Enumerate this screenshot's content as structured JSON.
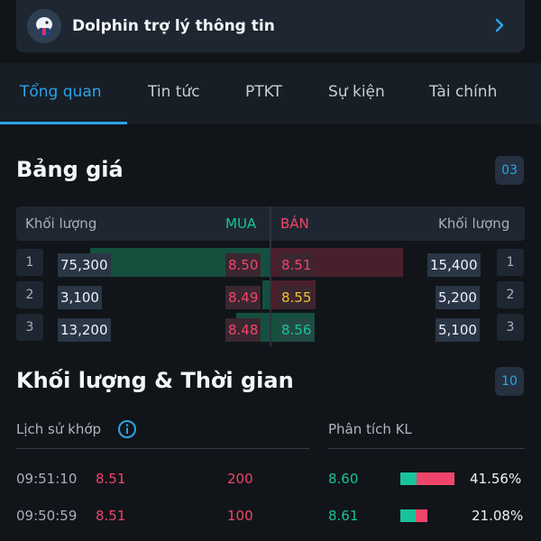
{
  "assistant": {
    "title": "Dolphin trợ lý thông tin"
  },
  "tabs": [
    "Tổng quan",
    "Tin tức",
    "PTKT",
    "Sự kiện",
    "Tài chính"
  ],
  "price_board": {
    "title": "Bảng giá",
    "badge": "03",
    "headers": {
      "buy_volume": "Khối lượng",
      "buy": "MUA",
      "sell": "BÁN",
      "sell_volume": "Khối lượng"
    },
    "rows": [
      {
        "idx": "1",
        "buy_volume": "75,300",
        "buy_price": "8.50",
        "sell_price": "8.51",
        "sell_volume": "15,400",
        "sell_idx": "1"
      },
      {
        "idx": "2",
        "buy_volume": "3,100",
        "buy_price": "8.49",
        "sell_price": "8.55",
        "sell_volume": "5,200",
        "sell_idx": "2"
      },
      {
        "idx": "3",
        "buy_volume": "13,200",
        "buy_price": "8.48",
        "sell_price": "8.56",
        "sell_volume": "5,100",
        "sell_idx": "3"
      }
    ]
  },
  "volume_time": {
    "title": "Khối lượng & Thời gian",
    "badge": "10",
    "history_label": "Lịch sử khớp",
    "analysis_label": "Phân tích KL",
    "trades": [
      {
        "time": "09:51:10",
        "price": "8.51",
        "volume": "200"
      },
      {
        "time": "09:50:59",
        "price": "8.51",
        "volume": "100"
      }
    ],
    "analysis": [
      {
        "price": "8.60",
        "percent": "41.56%",
        "buy_share": 0.3,
        "total_share": 1.0
      },
      {
        "price": "8.61",
        "percent": "21.08%",
        "buy_share": 0.55,
        "total_share": 0.5
      }
    ]
  },
  "colors": {
    "accent": "#2ea2e8",
    "green": "#19c39a",
    "red": "#f0456a",
    "yellow": "#f1c232"
  }
}
